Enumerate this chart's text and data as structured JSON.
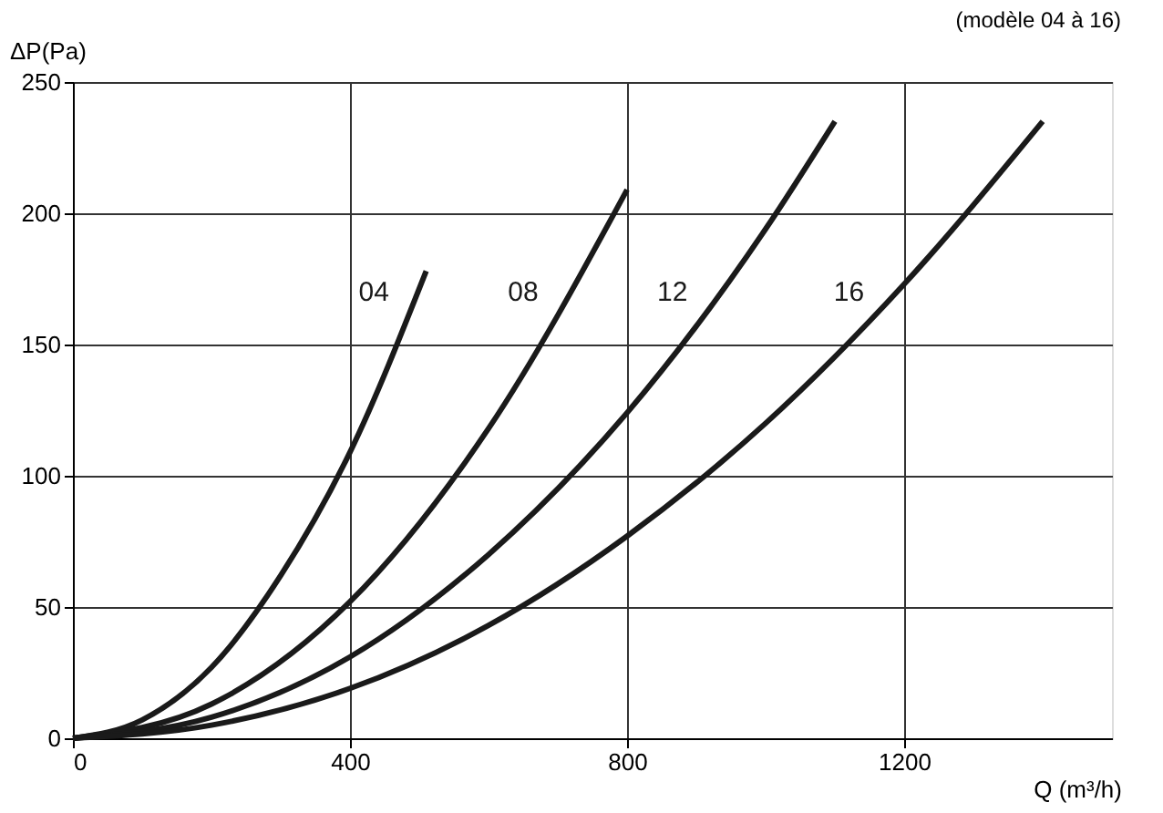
{
  "chart_data": {
    "type": "line",
    "title": "(modèle 04 à 16)",
    "xlabel": "Q (m³/h)",
    "ylabel": "ΔP(Pa)",
    "xlim": [
      0,
      1500
    ],
    "xticks": [
      0,
      400,
      800,
      1200
    ],
    "ylim": [
      0,
      250
    ],
    "yticks": [
      0,
      50,
      100,
      150,
      200,
      250
    ],
    "grid": true,
    "marker": "none",
    "line_style": "solid",
    "series": [
      {
        "name": "04",
        "color": "#1a1a1a",
        "x": [
          0,
          100,
          200,
          300,
          400,
          510
        ],
        "values": [
          0,
          7,
          27,
          62,
          109,
          178
        ]
      },
      {
        "name": "08",
        "color": "#1a1a1a",
        "x": [
          0,
          200,
          400,
          600,
          800
        ],
        "values": [
          0,
          13,
          52,
          118,
          209
        ]
      },
      {
        "name": "12",
        "color": "#1a1a1a",
        "x": [
          0,
          200,
          400,
          600,
          800,
          1000,
          1100
        ],
        "values": [
          0,
          8,
          31,
          70,
          124,
          194,
          235
        ]
      },
      {
        "name": "16",
        "color": "#1a1a1a",
        "x": [
          0,
          200,
          400,
          600,
          800,
          1000,
          1200,
          1400
        ],
        "values": [
          0,
          5,
          19,
          43,
          77,
          120,
          173,
          235
        ]
      }
    ]
  }
}
